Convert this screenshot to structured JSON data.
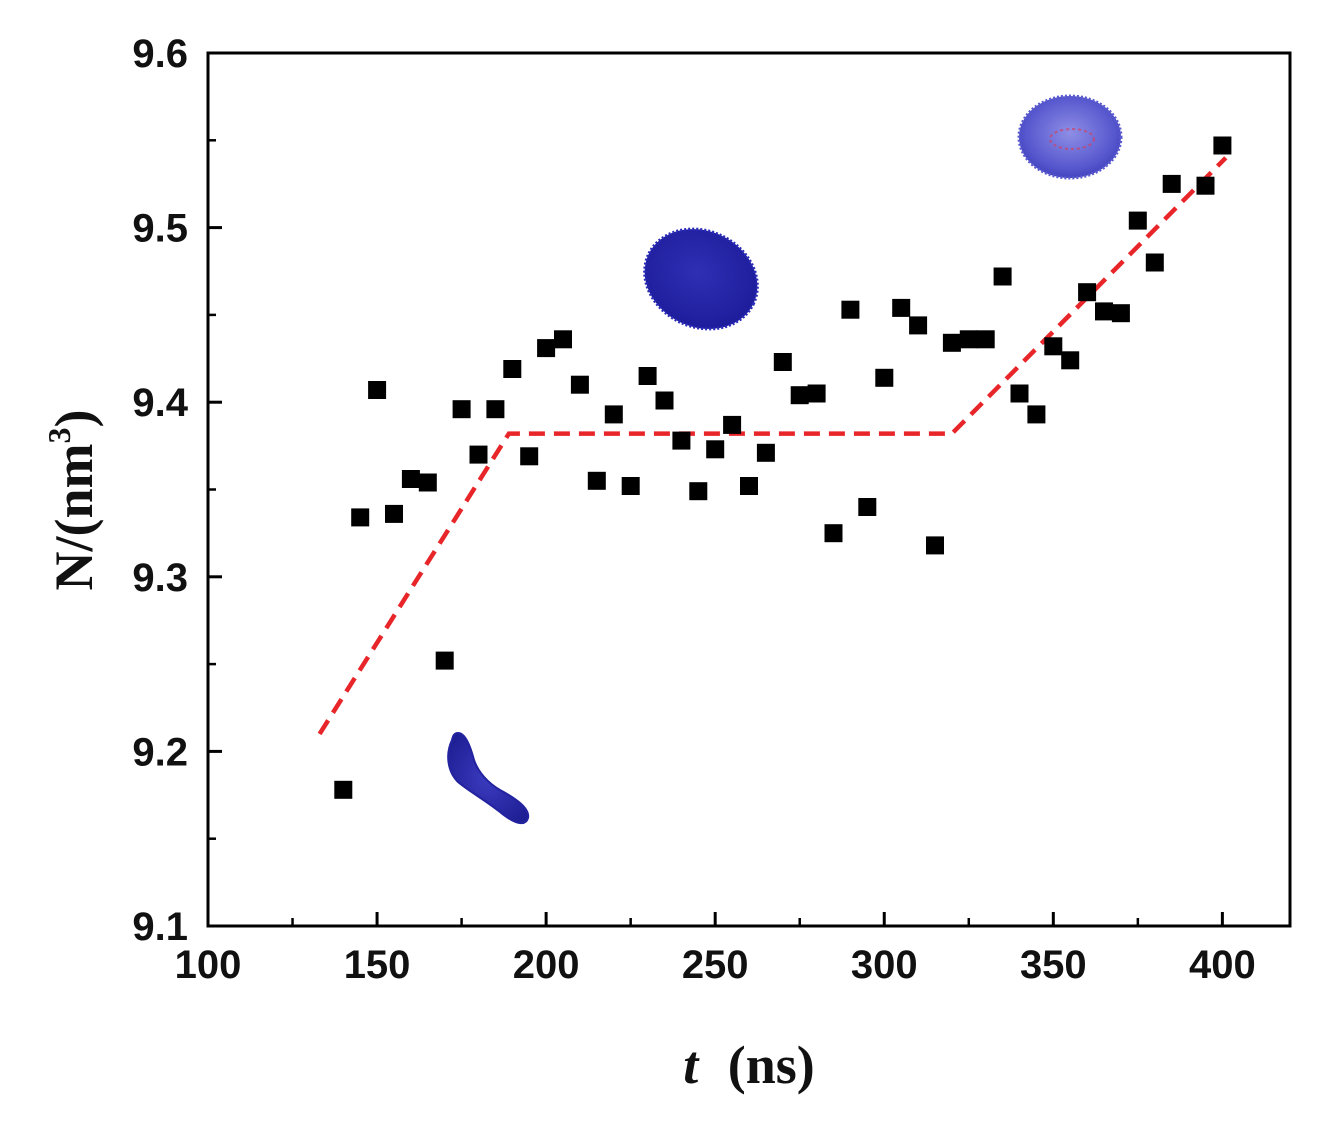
{
  "chart_data": {
    "type": "scatter",
    "title": "",
    "xlabel": "t (ns)",
    "xlabel_var": "t",
    "xlabel_unit": "(ns)",
    "ylabel": "N/(nm³)",
    "ylabel_base": "N/(nm",
    "ylabel_sup": "3",
    "ylabel_close": ")",
    "xlim": [
      100,
      420
    ],
    "ylim": [
      9.1,
      9.6
    ],
    "x_ticks": [
      "100",
      "150",
      "200",
      "250",
      "300",
      "350",
      "400"
    ],
    "y_ticks": [
      "9.1",
      "9.2",
      "9.3",
      "9.4",
      "9.5",
      "9.6"
    ],
    "grid": false,
    "legend": "none",
    "colors": {
      "points": "#000000",
      "fit_line": "#e8262a",
      "droplet": "#2b2bb0"
    },
    "series": [
      {
        "marker": "square",
        "x": [
          140,
          145,
          150,
          155,
          160,
          165,
          170,
          175,
          180,
          185,
          190,
          195,
          200,
          205,
          210,
          215,
          220,
          225,
          230,
          235,
          240,
          245,
          250,
          255,
          260,
          265,
          270,
          275,
          280,
          285,
          290,
          295,
          300,
          305,
          310,
          315,
          320,
          325,
          330,
          335,
          340,
          345,
          350,
          355,
          360,
          365,
          370,
          375,
          380,
          385,
          395,
          400
        ],
        "y": [
          9.178,
          9.334,
          9.407,
          9.336,
          9.356,
          9.354,
          9.252,
          9.396,
          9.37,
          9.396,
          9.419,
          9.369,
          9.431,
          9.436,
          9.41,
          9.355,
          9.393,
          9.352,
          9.415,
          9.401,
          9.378,
          9.349,
          9.373,
          9.387,
          9.352,
          9.371,
          9.423,
          9.404,
          9.405,
          9.325,
          9.453,
          9.34,
          9.414,
          9.454,
          9.444,
          9.318,
          9.434,
          9.436,
          9.436,
          9.472,
          9.405,
          9.393,
          9.432,
          9.424,
          9.463,
          9.452,
          9.451,
          9.504,
          9.48,
          9.525,
          9.524,
          9.547
        ]
      }
    ],
    "fit_line": {
      "style": "dashed",
      "x": [
        133,
        189,
        320,
        401
      ],
      "y": [
        9.21,
        9.382,
        9.382,
        9.54
      ]
    },
    "droplet_shapes": [
      {
        "name": "elongated-droplet",
        "x": 177,
        "y": 9.18
      },
      {
        "name": "ellipsoid-droplet",
        "x": 248,
        "y": 9.475
      },
      {
        "name": "spherical-droplet",
        "x": 355,
        "y": 9.555
      }
    ]
  }
}
